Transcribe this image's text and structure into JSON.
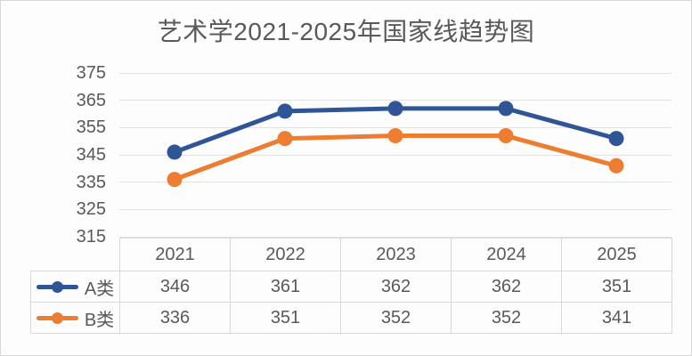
{
  "chart_data": {
    "type": "line",
    "title": "艺术学2021-2025年国家线趋势图",
    "categories": [
      "2021",
      "2022",
      "2023",
      "2024",
      "2025"
    ],
    "series": [
      {
        "id": "a",
        "name": "A类",
        "values": [
          346,
          361,
          362,
          362,
          351
        ],
        "color": "#2F5597"
      },
      {
        "id": "b",
        "name": "B类",
        "values": [
          336,
          351,
          352,
          352,
          341
        ],
        "color": "#ED7D31"
      }
    ],
    "xlabel": "",
    "ylabel": "",
    "ylim": [
      315,
      375
    ],
    "yticks": [
      375,
      365,
      355,
      345,
      335,
      325,
      315
    ],
    "grid": "horizontal-only",
    "legend_position": "table-left-keys",
    "marker": "circle",
    "line_width": 5
  },
  "theme": {
    "text_color": "#595959",
    "gridline_color": "#e3e3e3",
    "table_border_color": "#d9d9d9",
    "background_color": "#fdfdfd",
    "canvas_border_color": "#d8d8d8"
  }
}
